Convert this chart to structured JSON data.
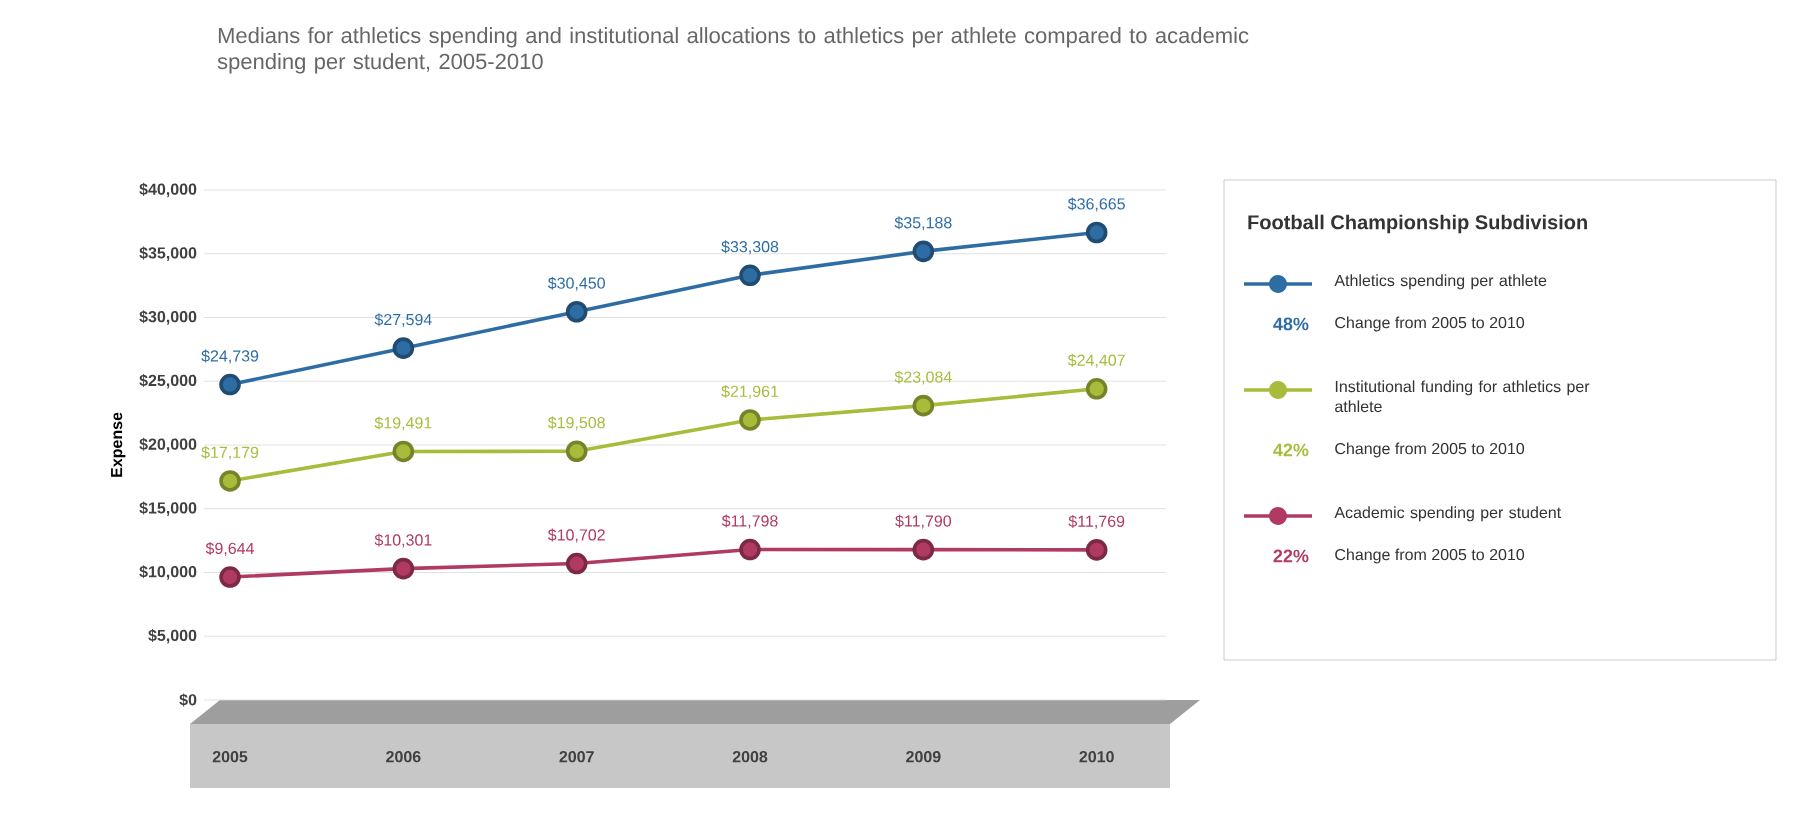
{
  "chart_data": {
    "type": "line",
    "title": "Medians for athletics spending and institutional allocations to athletics per athlete compared to academic spending per student, 2005-2010",
    "ylabel": "Expense",
    "legend_title": "Football Championship Subdivision",
    "categories": [
      "2005",
      "2006",
      "2007",
      "2008",
      "2009",
      "2010"
    ],
    "series": [
      {
        "name": "Athletics spending per athlete",
        "color": "#2e6da4",
        "values": [
          24739,
          27594,
          30450,
          33308,
          35188,
          36665
        ],
        "value_labels": [
          "$24,739",
          "$27,594",
          "$30,450",
          "$33,308",
          "$35,188",
          "$36,665"
        ]
      },
      {
        "name": "Institutional funding for athletics per athlete",
        "color": "#a9bb3b",
        "values": [
          17179,
          19491,
          19508,
          21961,
          23084,
          24407
        ],
        "value_labels": [
          "$17,179",
          "$19,491",
          "$19,508",
          "$21,961",
          "$23,084",
          "$24,407"
        ]
      },
      {
        "name": "Academic spending per student",
        "color": "#b03a62",
        "values": [
          9644,
          10301,
          10702,
          11798,
          11790,
          11769
        ],
        "value_labels": [
          "$9,644",
          "$10,301",
          "$10,702",
          "$11,798",
          "$11,790",
          "$11,769"
        ]
      }
    ],
    "annotations": [
      "48%",
      "Change from 2005 to 2010",
      "42%",
      "Change from 2005 to 2010",
      "22%",
      "Change from 2005 to 2010"
    ],
    "ylim": [
      0,
      40000
    ],
    "yticks": [
      {
        "value": 0,
        "label": "$0"
      },
      {
        "value": 5000,
        "label": "$5,000"
      },
      {
        "value": 10000,
        "label": "$10,000"
      },
      {
        "value": 15000,
        "label": "$15,000"
      },
      {
        "value": 20000,
        "label": "$20,000"
      },
      {
        "value": 25000,
        "label": "$25,000"
      },
      {
        "value": 30000,
        "label": "$30,000"
      },
      {
        "value": 35000,
        "label": "$35,000"
      },
      {
        "value": 40000,
        "label": "$40,000"
      }
    ],
    "grid": "y",
    "legend": "right",
    "marker": "circle",
    "line_style": "solid"
  }
}
